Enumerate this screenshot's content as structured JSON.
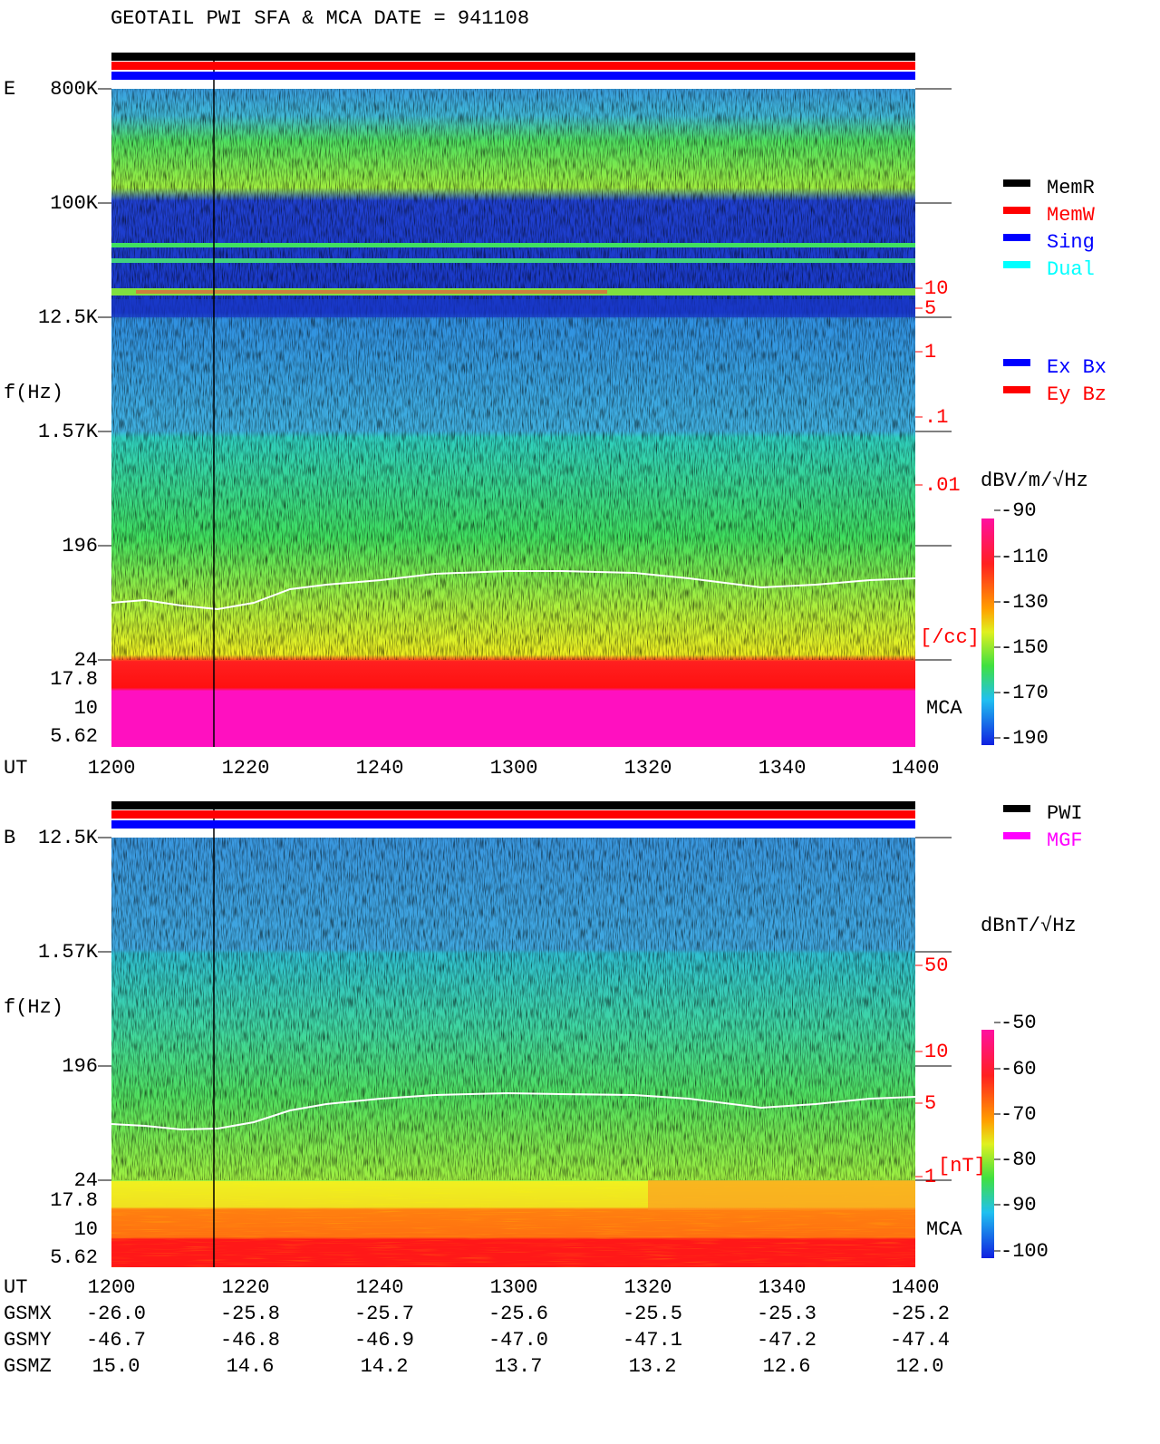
{
  "title": "GEOTAIL  PWI SFA & MCA   DATE = 941108",
  "panels": [
    {
      "label": "E",
      "y_label": "f(Hz)",
      "x_label": "UT",
      "freq_ticks": [
        "800K",
        "100K",
        "12.5K",
        "1.57K",
        "196",
        "24",
        "17.8",
        "10",
        "5.62"
      ],
      "time_ticks": [
        "1200",
        "1220",
        "1240",
        "1300",
        "1320",
        "1340",
        "1400"
      ],
      "right_scale": [
        "10",
        "5",
        "1",
        ".1",
        ".01"
      ],
      "right_unit": "[/cc]",
      "mca": "MCA",
      "colorbar_unit": "dBV/m/√Hz",
      "colorbar_ticks": [
        "-90",
        "-110",
        "-130",
        "-150",
        "-170",
        "-190"
      ],
      "legend": [
        {
          "label": "MemR",
          "color": "#000000"
        },
        {
          "label": "MemW",
          "color": "#ff0000"
        },
        {
          "label": "Sing",
          "color": "#0000ff"
        },
        {
          "label": "Dual",
          "color": "#00ffff"
        }
      ],
      "legend2": [
        {
          "label": "Ex Bx",
          "color": "#0000ff"
        },
        {
          "label": "Ey Bz",
          "color": "#ff0000"
        }
      ]
    },
    {
      "label": "B",
      "y_label": "f(Hz)",
      "x_label": "UT",
      "freq_ticks": [
        "12.5K",
        "1.57K",
        "196",
        "24",
        "17.8",
        "10",
        "5.62"
      ],
      "time_ticks": [
        "1200",
        "1220",
        "1240",
        "1300",
        "1320",
        "1340",
        "1400"
      ],
      "right_scale": [
        "50",
        "10",
        "5",
        "1"
      ],
      "right_unit": "[nT]",
      "mca": "MCA",
      "colorbar_unit": "dBnT/√Hz",
      "colorbar_ticks": [
        "-50",
        "-60",
        "-70",
        "-80",
        "-90",
        "-100"
      ],
      "legend": [
        {
          "label": "PWI",
          "color": "#000000"
        },
        {
          "label": "MGF",
          "color": "#ff00ff"
        }
      ]
    }
  ],
  "orbit": [
    {
      "name": "GSMX",
      "values": [
        "-26.0",
        "-25.8",
        "-25.7",
        "-25.6",
        "-25.5",
        "-25.3",
        "-25.2"
      ]
    },
    {
      "name": "GSMY",
      "values": [
        "-46.7",
        "-46.8",
        "-46.9",
        "-47.0",
        "-47.1",
        "-47.2",
        "-47.4"
      ]
    },
    {
      "name": "GSMZ",
      "values": [
        "15.0",
        "14.6",
        "14.2",
        "13.7",
        "13.2",
        "12.6",
        "12.0"
      ]
    }
  ]
}
